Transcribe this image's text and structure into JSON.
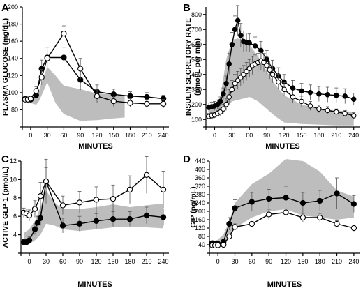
{
  "chart_data": [
    {
      "type": "line",
      "panel": "A",
      "ylabel": "PLASMA GLUCOSE (mg/dL)",
      "xlabel": "MINUTES",
      "xlim": [
        -15,
        250
      ],
      "ylim": [
        60,
        200
      ],
      "xticks": [
        "0",
        "30",
        "60",
        "90",
        "120",
        "150",
        "180",
        "210",
        "240"
      ],
      "yticks": [
        "80",
        "100",
        "120",
        "140",
        "160",
        "180",
        "200"
      ],
      "band": {
        "x": [
          -10,
          -5,
          0,
          10,
          15,
          20,
          30,
          45,
          60,
          90,
          120,
          150,
          170
        ],
        "upper": [
          95,
          95,
          95,
          98,
          102,
          112,
          130,
          120,
          108,
          104,
          99,
          98,
          96
        ],
        "lower": [
          90,
          90,
          88,
          86,
          90,
          97,
          112,
          88,
          75,
          67,
          68,
          70,
          71
        ]
      },
      "series": [
        {
          "marker": "filled",
          "x": [
            -10,
            -5,
            0,
            10,
            20,
            30,
            60,
            90,
            120,
            150,
            180,
            210,
            240
          ],
          "values": [
            93,
            92,
            92,
            97,
            128,
            141,
            141,
            115,
            101,
            98,
            96,
            95,
            93
          ],
          "err": [
            3,
            3,
            3,
            4,
            10,
            12,
            12,
            12,
            8,
            6,
            5,
            5,
            4
          ]
        },
        {
          "marker": "open",
          "x": [
            -10,
            -5,
            0,
            10,
            20,
            30,
            60,
            90,
            120,
            150,
            180,
            210,
            240
          ],
          "values": [
            92,
            92,
            93,
            102,
            118,
            140,
            169,
            128,
            96,
            90,
            88,
            87,
            87
          ],
          "err": [
            3,
            3,
            3,
            5,
            9,
            10,
            9,
            12,
            8,
            6,
            5,
            5,
            5
          ]
        }
      ]
    },
    {
      "type": "line",
      "panel": "B",
      "ylabel": "INSULIN SECRETORY RATE\n(pmol/L per min)",
      "xlabel": "MINUTES",
      "xlim": [
        -15,
        250
      ],
      "ylim": [
        50,
        850
      ],
      "xticks": [
        "0",
        "30",
        "60",
        "90",
        "120",
        "150",
        "180",
        "210",
        "240"
      ],
      "yticks": [
        "100",
        "200",
        "300",
        "400",
        "500",
        "600",
        "700",
        "800"
      ],
      "band": {
        "x": [
          -10,
          0,
          10,
          20,
          30,
          40,
          50,
          60,
          75,
          90,
          105,
          120,
          150,
          180,
          210,
          240
        ],
        "upper": [
          180,
          200,
          250,
          500,
          630,
          640,
          630,
          600,
          520,
          420,
          330,
          260,
          200,
          170,
          160,
          150
        ],
        "lower": [
          100,
          110,
          140,
          180,
          220,
          230,
          240,
          250,
          220,
          170,
          120,
          80,
          70,
          65,
          60,
          60
        ]
      },
      "series": [
        {
          "marker": "filled",
          "x": [
            -10,
            -5,
            0,
            5,
            10,
            15,
            20,
            25,
            30,
            35,
            40,
            45,
            50,
            55,
            60,
            70,
            80,
            90,
            100,
            110,
            120,
            135,
            150,
            165,
            180,
            195,
            210,
            225,
            240
          ],
          "values": [
            180,
            185,
            190,
            200,
            220,
            270,
            340,
            470,
            600,
            700,
            760,
            660,
            620,
            615,
            610,
            590,
            560,
            500,
            440,
            390,
            350,
            310,
            290,
            280,
            270,
            265,
            260,
            255,
            235
          ],
          "err": [
            30,
            30,
            30,
            30,
            30,
            40,
            50,
            70,
            80,
            90,
            100,
            80,
            70,
            60,
            60,
            60,
            60,
            60,
            55,
            55,
            50,
            50,
            50,
            50,
            50,
            50,
            50,
            50,
            40
          ]
        },
        {
          "marker": "open",
          "x": [
            -10,
            -5,
            0,
            5,
            10,
            15,
            20,
            25,
            30,
            35,
            40,
            45,
            50,
            55,
            60,
            65,
            70,
            75,
            80,
            85,
            90,
            95,
            100,
            110,
            120,
            135,
            150,
            165,
            180,
            195,
            210,
            225,
            240
          ],
          "values": [
            120,
            125,
            130,
            140,
            150,
            170,
            200,
            250,
            300,
            340,
            360,
            380,
            400,
            420,
            440,
            460,
            470,
            480,
            490,
            480,
            460,
            430,
            400,
            350,
            300,
            250,
            220,
            190,
            170,
            160,
            150,
            140,
            125
          ],
          "err": [
            20,
            20,
            20,
            20,
            25,
            30,
            40,
            50,
            60,
            60,
            60,
            60,
            60,
            60,
            60,
            60,
            60,
            60,
            60,
            60,
            60,
            60,
            55,
            50,
            45,
            40,
            35,
            30,
            25,
            25,
            20,
            20,
            20
          ]
        }
      ]
    },
    {
      "type": "line",
      "panel": "C",
      "ylabel": "ACTIVE GLP-1 (pmol/L)",
      "xlabel": "MINUTES",
      "xlim": [
        -15,
        250
      ],
      "ylim": [
        2,
        12
      ],
      "xticks": [
        "0",
        "30",
        "60",
        "90",
        "120",
        "150",
        "180",
        "210",
        "240"
      ],
      "yticks": [
        "4",
        "6",
        "8",
        "10",
        "12"
      ],
      "band": {
        "x": [
          -10,
          0,
          10,
          20,
          30,
          45,
          60,
          90,
          120,
          150,
          180,
          210,
          240
        ],
        "upper": [
          4.2,
          4.6,
          5.5,
          7.0,
          8.8,
          7.5,
          6.8,
          6.8,
          7.0,
          7.3,
          7.0,
          7.2,
          7.4
        ],
        "lower": [
          3.0,
          3.0,
          3.4,
          4.0,
          5.2,
          5.0,
          4.6,
          4.4,
          4.6,
          4.8,
          4.9,
          4.8,
          4.7
        ]
      },
      "series": [
        {
          "marker": "filled",
          "x": [
            -10,
            -5,
            0,
            10,
            15,
            20,
            30,
            60,
            90,
            120,
            150,
            180,
            210,
            240
          ],
          "values": [
            3.2,
            3.2,
            3.4,
            4.6,
            5.3,
            5.8,
            9.8,
            5.0,
            5.2,
            5.5,
            5.7,
            5.7,
            6.1,
            5.9
          ],
          "err": [
            0.3,
            0.3,
            0.4,
            0.6,
            0.7,
            0.8,
            1.5,
            0.8,
            0.8,
            0.8,
            0.8,
            0.8,
            0.9,
            0.9
          ]
        },
        {
          "marker": "open",
          "x": [
            -10,
            -5,
            0,
            10,
            20,
            30,
            60,
            90,
            120,
            150,
            180,
            210,
            240
          ],
          "values": [
            6.4,
            6.3,
            6.1,
            6.8,
            8.2,
            9.8,
            7.2,
            7.5,
            7.8,
            7.9,
            8.9,
            10.5,
            8.9
          ],
          "err": [
            0.5,
            0.5,
            0.6,
            0.9,
            1.5,
            2.4,
            1.0,
            1.2,
            1.4,
            1.5,
            1.5,
            2.0,
            2.0
          ]
        }
      ]
    },
    {
      "type": "line",
      "panel": "D",
      "ylabel": "GIP (pg/mL)",
      "xlabel": "MINUTES",
      "xlim": [
        -15,
        250
      ],
      "ylim": [
        0,
        440
      ],
      "xticks": [
        "0",
        "30",
        "60",
        "90",
        "120",
        "150",
        "180",
        "210",
        "240"
      ],
      "yticks": [
        "40",
        "80",
        "120",
        "160",
        "200",
        "240",
        "280",
        "320",
        "360",
        "400",
        "440"
      ],
      "band": {
        "x": [
          -10,
          0,
          10,
          20,
          30,
          60,
          90,
          120,
          150,
          180,
          210,
          240
        ],
        "upper": [
          55,
          65,
          90,
          150,
          240,
          330,
          380,
          450,
          440,
          390,
          300,
          270
        ],
        "lower": [
          40,
          42,
          50,
          80,
          120,
          170,
          200,
          210,
          180,
          170,
          160,
          170
        ]
      },
      "series": [
        {
          "marker": "filled",
          "x": [
            -10,
            -5,
            0,
            10,
            20,
            30,
            60,
            90,
            120,
            150,
            180,
            210,
            240
          ],
          "values": [
            48,
            46,
            45,
            55,
            140,
            215,
            245,
            260,
            265,
            240,
            250,
            285,
            235
          ],
          "err": [
            5,
            5,
            5,
            8,
            30,
            40,
            45,
            45,
            55,
            50,
            50,
            75,
            40
          ]
        },
        {
          "marker": "open",
          "x": [
            -10,
            -5,
            0,
            10,
            20,
            30,
            60,
            90,
            120,
            150,
            180,
            210,
            240
          ],
          "values": [
            38,
            37,
            38,
            40,
            80,
            125,
            140,
            185,
            195,
            170,
            170,
            140,
            120
          ],
          "err": [
            5,
            5,
            5,
            6,
            12,
            15,
            12,
            25,
            30,
            20,
            20,
            15,
            15
          ]
        }
      ]
    }
  ]
}
